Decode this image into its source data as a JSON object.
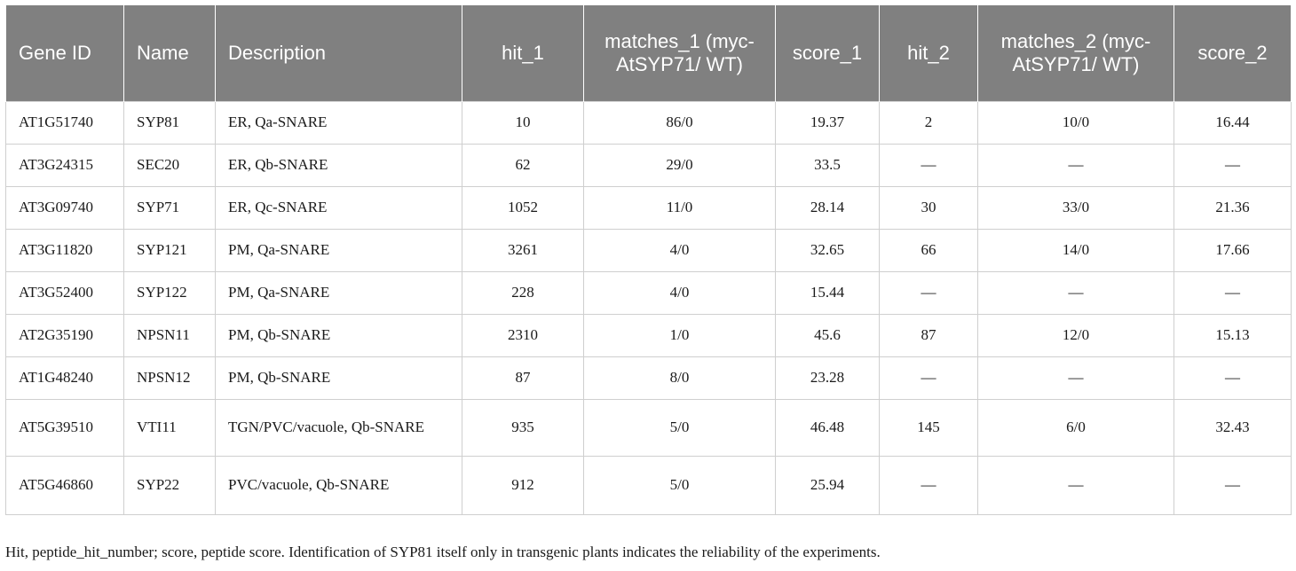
{
  "table": {
    "headers": [
      "Gene ID",
      "Name",
      "Description",
      "hit_1",
      "matches_1 (myc- AtSYP71/ WT)",
      "score_1",
      "hit_2",
      "matches_2 (myc- AtSYP71/ WT)",
      "score_2"
    ],
    "rows": [
      [
        "AT1G51740",
        "SYP81",
        "ER, Qa-SNARE",
        "10",
        "86/0",
        "19.37",
        "2",
        "10/0",
        "16.44"
      ],
      [
        "AT3G24315",
        "SEC20",
        "ER, Qb-SNARE",
        "62",
        "29/0",
        "33.5",
        "—",
        "—",
        "—"
      ],
      [
        "AT3G09740",
        "SYP71",
        "ER, Qc-SNARE",
        "1052",
        "11/0",
        "28.14",
        "30",
        "33/0",
        "21.36"
      ],
      [
        "AT3G11820",
        "SYP121",
        "PM, Qa-SNARE",
        "3261",
        "4/0",
        "32.65",
        "66",
        "14/0",
        "17.66"
      ],
      [
        "AT3G52400",
        "SYP122",
        "PM, Qa-SNARE",
        "228",
        "4/0",
        "15.44",
        "—",
        "—",
        "—"
      ],
      [
        "AT2G35190",
        "NPSN11",
        "PM, Qb-SNARE",
        "2310",
        "1/0",
        "45.6",
        "87",
        "12/0",
        "15.13"
      ],
      [
        "AT1G48240",
        "NPSN12",
        "PM, Qb-SNARE",
        "87",
        "8/0",
        "23.28",
        "—",
        "—",
        "—"
      ],
      [
        "AT5G39510",
        "VTI11",
        "TGN/PVC/vacuole, Qb-SNARE",
        "935",
        "5/0",
        "46.48",
        "145",
        "6/0",
        "32.43"
      ],
      [
        "AT5G46860",
        "SYP22",
        "PVC/vacuole, Qb-SNARE",
        "912",
        "5/0",
        "25.94",
        "—",
        "—",
        "—"
      ]
    ]
  },
  "footnote": "Hit, peptide_hit_number; score, peptide score. Identification of SYP81 itself only in transgenic plants indicates the reliability of the experiments."
}
